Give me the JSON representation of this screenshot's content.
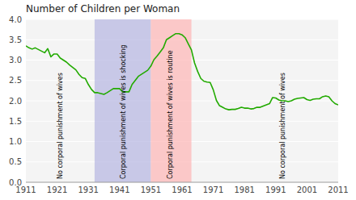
{
  "chart_data": {
    "type": "line",
    "title": "Number of Children per Woman",
    "color": "#22aa00",
    "grid": true,
    "xlim": [
      1911,
      2011
    ],
    "ylim": [
      0.0,
      4.0
    ],
    "xticks": [
      1911,
      1921,
      1931,
      1941,
      1951,
      1961,
      1971,
      1981,
      1991,
      2001,
      2011
    ],
    "yticks": [
      {
        "value": 0.0,
        "label": "0.0"
      },
      0.5,
      {
        "value": 1.0,
        "label": "1.0"
      },
      1.5,
      {
        "value": 2.0,
        "label": "2.0"
      },
      2.5,
      {
        "value": 3.0,
        "label": "3.0"
      },
      3.5,
      {
        "value": 4.0,
        "label": "4.0"
      }
    ],
    "shaded_regions": [
      {
        "xmin": 1933,
        "xmax": 1951,
        "color": "#aaaadd"
      },
      {
        "xmin": 1951,
        "xmax": 1964,
        "color": "#ffaaaa"
      }
    ],
    "annotations": [
      {
        "text": "No corporal punishment of wives",
        "x": 1922
      },
      {
        "text": "Corporal punishment of wives is shocking",
        "x": 1942
      },
      {
        "text": "Corporal punishment of wives is routine",
        "x": 1957
      },
      {
        "text": "No corporal punishment of wives",
        "x": 1993
      }
    ],
    "x": [
      1911,
      1912,
      1913,
      1914,
      1915,
      1916,
      1917,
      1918,
      1919,
      1920,
      1921,
      1922,
      1923,
      1924,
      1925,
      1926,
      1927,
      1928,
      1929,
      1930,
      1931,
      1932,
      1933,
      1934,
      1935,
      1936,
      1937,
      1938,
      1939,
      1940,
      1941,
      1942,
      1943,
      1944,
      1945,
      1946,
      1947,
      1948,
      1949,
      1950,
      1951,
      1952,
      1953,
      1954,
      1955,
      1956,
      1957,
      1958,
      1959,
      1960,
      1961,
      1962,
      1963,
      1964,
      1965,
      1966,
      1967,
      1968,
      1969,
      1970,
      1971,
      1972,
      1973,
      1974,
      1975,
      1976,
      1977,
      1978,
      1979,
      1980,
      1981,
      1982,
      1983,
      1984,
      1985,
      1986,
      1987,
      1988,
      1989,
      1990,
      1991,
      1992,
      1993,
      1994,
      1995,
      1996,
      1997,
      1998,
      1999,
      2000,
      2001,
      2002,
      2003,
      2004,
      2005,
      2006,
      2007,
      2008,
      2009,
      2010,
      2011
    ],
    "values": [
      3.35,
      3.3,
      3.27,
      3.3,
      3.26,
      3.22,
      3.18,
      3.28,
      3.08,
      3.15,
      3.15,
      3.05,
      3.0,
      2.95,
      2.88,
      2.82,
      2.76,
      2.65,
      2.57,
      2.55,
      2.4,
      2.28,
      2.2,
      2.2,
      2.18,
      2.16,
      2.2,
      2.25,
      2.3,
      2.3,
      2.3,
      2.22,
      2.22,
      2.22,
      2.4,
      2.5,
      2.6,
      2.65,
      2.7,
      2.75,
      2.85,
      3.01,
      3.1,
      3.2,
      3.3,
      3.5,
      3.55,
      3.6,
      3.65,
      3.65,
      3.62,
      3.55,
      3.4,
      3.25,
      2.93,
      2.72,
      2.55,
      2.48,
      2.46,
      2.45,
      2.27,
      2.01,
      1.88,
      1.84,
      1.8,
      1.78,
      1.79,
      1.79,
      1.81,
      1.84,
      1.82,
      1.82,
      1.8,
      1.81,
      1.84,
      1.84,
      1.87,
      1.9,
      1.93,
      2.08,
      2.07,
      2.02,
      2.0,
      2.0,
      1.98,
      2.0,
      2.04,
      2.06,
      2.07,
      2.08,
      2.03,
      2.01,
      2.04,
      2.05,
      2.05,
      2.1,
      2.12,
      2.1,
      2.0,
      1.93,
      1.9
    ]
  }
}
